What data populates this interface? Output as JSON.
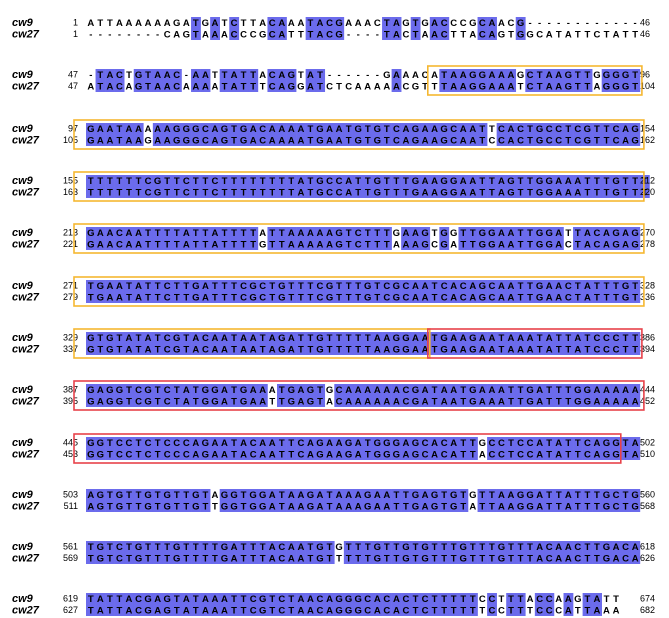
{
  "colors": {
    "match": "#6b6bec",
    "orange_box": "#f5b731",
    "red_box": "#e8424a",
    "start_codon_text": "#e8424a"
  },
  "alignment": {
    "seq_names": [
      "cw9",
      "cw27"
    ],
    "blocks": [
      {
        "s1": [
          "1",
          "ATTAAAAAAGATGATCTTACAAATACGAAACTAGTGACCCGCAACG------------",
          "46"
        ],
        "s2": [
          "1",
          "--------CAGTAAACCCGCATTTACG----TACTAACTTACAGTGGCATATTCTATT",
          "46"
        ]
      },
      {
        "s1": [
          "47",
          "-TACTGTAAC-AATTATTACAGTAT------GAAACATAAGGAAAGCTAAGTTGGGGT",
          "96"
        ],
        "s2": [
          "47",
          "ATACAGTAACAAAATATTTCAGGATCTCAAAAACGTTTAAGGAAATCTAAGTTAGGGT",
          "104"
        ]
      },
      {
        "s1": [
          "97",
          "GAATAAAAAGGGCAGTGACAAAATGAATGTGTCAGAAGCAATTCACTGCCTCGTTCAG",
          "154"
        ],
        "s2": [
          "105",
          "GAATAAGAAGGGCAGTGACAAAATGAATGTGTCAGAAGCAATCCACTGCCTCGTTCAG",
          "162"
        ]
      },
      {
        "s1": [
          "155",
          "TTTTTTCGTTCTTCTTTTTTTTATGCCATTGTTTGAAGGAATTAGTTGGAAATTTGTTT",
          "212"
        ],
        "s2": [
          "163",
          "TTTTTTCGTTCTTCTTTTTTTTATGCCATTGTTTGAAGGAATTAGTTGGAAATTTGTTT",
          "220"
        ]
      },
      {
        "s1": [
          "213",
          "GAACAATTTTATTATTTTATTAAAAAGTCTTTGAAGTGGTTGGAATTGGATTACAGAG",
          "270"
        ],
        "s2": [
          "221",
          "GAACAATTTTATTATTTTGTTAAAAAGTCTTTAAAGCGATTGGAATTGGACTACAGAG",
          "278"
        ]
      },
      {
        "s1": [
          "271",
          "TGAATATTCTTGATTTCGCTGTTTCGTTTGTCGCAATCACAGCAATTGAACTATTTGT",
          "328"
        ],
        "s2": [
          "279",
          "TGAATATTCTTGATTTCGCTGTTTCGTTTGTCGCAATCACAGCAATTGAACTATTTGT",
          "336"
        ]
      },
      {
        "s1": [
          "329",
          "GTGTATATCGTACAATAATAGATTGTTTTTAAGGAATGAAGAATAAATATTATCCCTT",
          "386"
        ],
        "s2": [
          "337",
          "GTGTATATCGTACAATAATAGATTGTTTTTAAGGAATGAAGAATAAATATTATCCCTT",
          "394"
        ]
      },
      {
        "s1": [
          "387",
          "GAGGTCGTCTATGGATGAAATGAGTGCAAAAAACGATAATGAAATTGATTTGGAAAAA",
          "444"
        ],
        "s2": [
          "395",
          "GAGGTCGTCTATGGATGAATTGAGTACAAAAAACGATAATGAAATTGATTTGGAAAAA",
          "452"
        ]
      },
      {
        "s1": [
          "445",
          "GGTCCTCTCCCAGAATACAATTCAGAAGATGGGAGCACATTGCCTCCATATTCAGGTA",
          "502"
        ],
        "s2": [
          "453",
          "GGTCCTCTCCCAGAATACAATTCAGAAGATGGGAGCACATTACCTCCATATTCAGGTA",
          "510"
        ]
      },
      {
        "s1": [
          "503",
          "AGTGTTGTGTTGTAGGTGGATAAGATAAAGAATTGAGTGTGTTAAGGATTATTTGCTG",
          "560"
        ],
        "s2": [
          "511",
          "AGTGTTGTGTTGTTGGTGGATAAGATAAAGAATTGAGTGTATTAAGGATTATTTGCTG",
          "568"
        ]
      },
      {
        "s1": [
          "561",
          "TGTCTGTTTGTTTTGATTTACAATGTGTTTGTTGTGTTTGTTTGTTTACAACTTGACA",
          "618"
        ],
        "s2": [
          "569",
          "TGTCTGTTTGTTTTGATTTACAATGTTTTTGTTGTGTTTGTTTGTTTACAACTTGACA",
          "626"
        ]
      },
      {
        "s1": [
          "619",
          "TATTACGAGTATAAATTCGTCTAACAGGGCACACTCTTTTTCCTTTACCAAGTATT  ",
          "674"
        ],
        "s2": [
          "627",
          "TATTACGAGTATAAATTCGTCTAACAGGGCACACTCTTTTTTCCTTTCCCATTAAA  ",
          "682"
        ]
      }
    ]
  }
}
